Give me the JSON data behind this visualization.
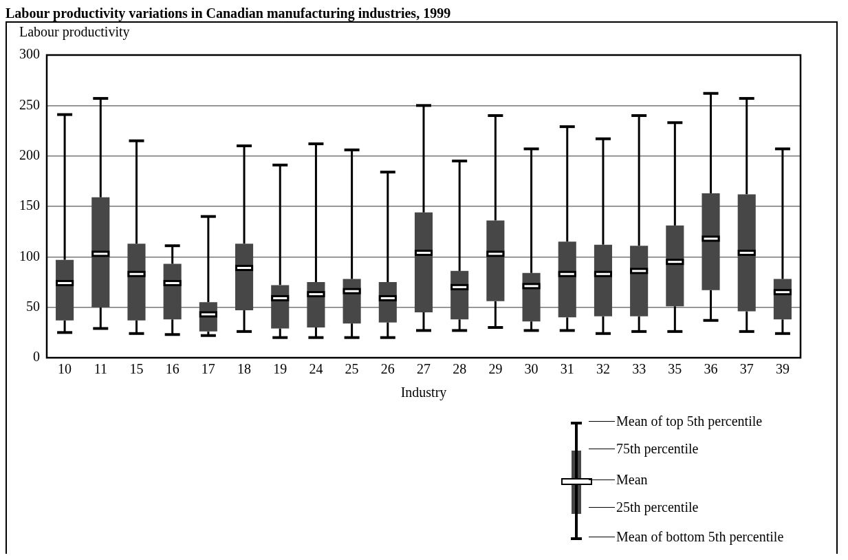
{
  "chart_data": {
    "type": "box",
    "title": "Labour productivity variations in Canadian manufacturing industries, 1999",
    "ylabel": "Labour productivity",
    "xlabel": "Industry",
    "categories": [
      "10",
      "11",
      "15",
      "16",
      "17",
      "18",
      "19",
      "24",
      "25",
      "26",
      "27",
      "28",
      "29",
      "30",
      "31",
      "32",
      "33",
      "35",
      "36",
      "37",
      "39"
    ],
    "color": "#474747",
    "boxes": [
      {
        "low": 25,
        "q1": 37,
        "mean": 74,
        "q3": 97,
        "high": 241
      },
      {
        "low": 29,
        "q1": 50,
        "mean": 103,
        "q3": 159,
        "high": 257
      },
      {
        "low": 24,
        "q1": 37,
        "mean": 83,
        "q3": 113,
        "high": 215
      },
      {
        "low": 23,
        "q1": 38,
        "mean": 74,
        "q3": 93,
        "high": 111
      },
      {
        "low": 22,
        "q1": 26,
        "mean": 43,
        "q3": 55,
        "high": 140
      },
      {
        "low": 26,
        "q1": 47,
        "mean": 89,
        "q3": 113,
        "high": 210
      },
      {
        "low": 20,
        "q1": 29,
        "mean": 59,
        "q3": 72,
        "high": 191
      },
      {
        "low": 20,
        "q1": 30,
        "mean": 63,
        "q3": 75,
        "high": 212
      },
      {
        "low": 20,
        "q1": 34,
        "mean": 66,
        "q3": 78,
        "high": 206
      },
      {
        "low": 20,
        "q1": 35,
        "mean": 59,
        "q3": 75,
        "high": 184
      },
      {
        "low": 27,
        "q1": 45,
        "mean": 104,
        "q3": 144,
        "high": 250
      },
      {
        "low": 27,
        "q1": 38,
        "mean": 70,
        "q3": 86,
        "high": 195
      },
      {
        "low": 30,
        "q1": 56,
        "mean": 103,
        "q3": 136,
        "high": 240
      },
      {
        "low": 27,
        "q1": 36,
        "mean": 71,
        "q3": 84,
        "high": 207
      },
      {
        "low": 27,
        "q1": 40,
        "mean": 83,
        "q3": 115,
        "high": 229
      },
      {
        "low": 24,
        "q1": 41,
        "mean": 83,
        "q3": 112,
        "high": 217
      },
      {
        "low": 26,
        "q1": 41,
        "mean": 86,
        "q3": 111,
        "high": 240
      },
      {
        "low": 26,
        "q1": 51,
        "mean": 95,
        "q3": 131,
        "high": 233
      },
      {
        "low": 37,
        "q1": 67,
        "mean": 118,
        "q3": 163,
        "high": 262
      },
      {
        "low": 26,
        "q1": 46,
        "mean": 104,
        "q3": 162,
        "high": 257
      },
      {
        "low": 24,
        "q1": 38,
        "mean": 65,
        "q3": 78,
        "high": 207
      }
    ],
    "ylim": [
      0,
      300
    ],
    "yticks": [
      0,
      50,
      100,
      150,
      200,
      250,
      300
    ],
    "grid": "y",
    "annotations": [
      "Mean of top 5th percentile",
      "75th percentile",
      "Mean",
      "25th percentile",
      "Mean of bottom 5th percentile"
    ]
  }
}
